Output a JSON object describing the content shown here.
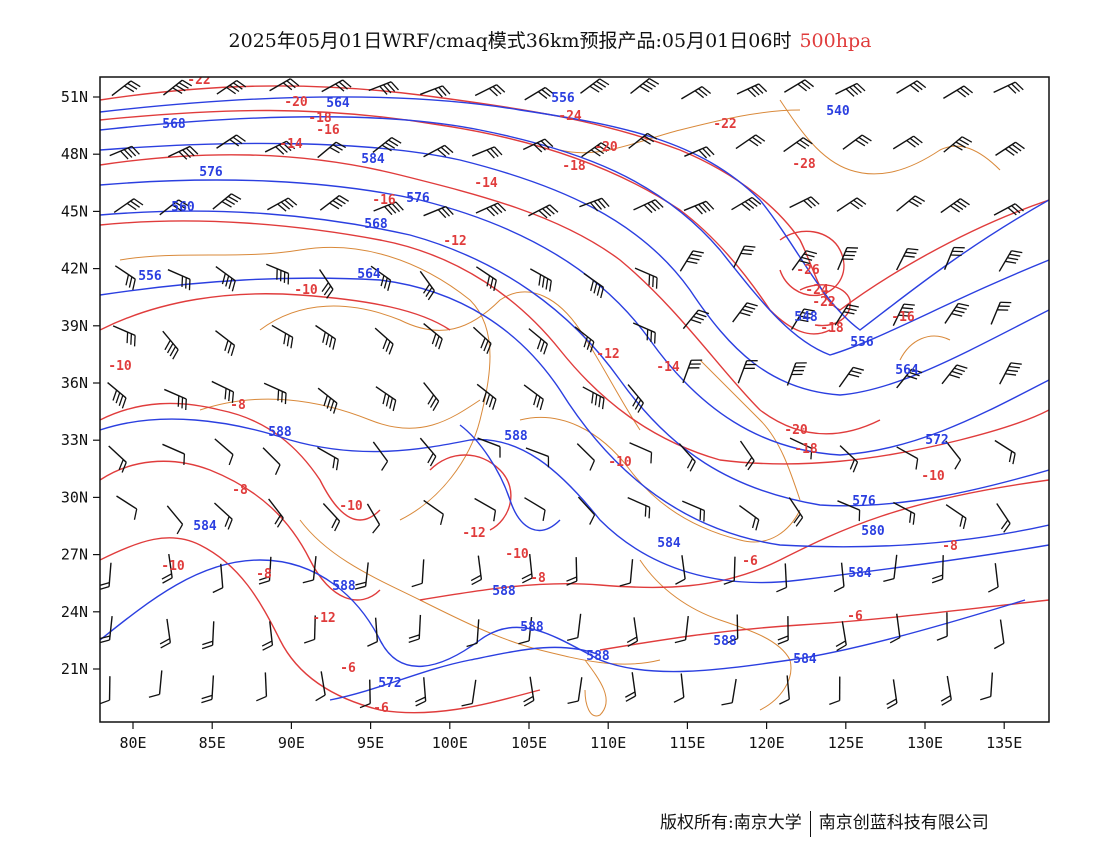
{
  "title": {
    "main": "2025年05月01日WRF/cmaq模式36km预报产品:05月01日06时",
    "level": "500hpa"
  },
  "colors": {
    "geopotential_contour": "#2b3fe0",
    "temperature_contour": "#e03c3c",
    "boundary": "#d9893a",
    "wind_barb": "#111111"
  },
  "axes": {
    "lon_labels": [
      "80E",
      "85E",
      "90E",
      "95E",
      "100E",
      "105E",
      "110E",
      "115E",
      "120E",
      "125E",
      "130E",
      "135E"
    ],
    "lat_labels": [
      "51N",
      "48N",
      "45N",
      "42N",
      "39N",
      "36N",
      "33N",
      "30N",
      "27N",
      "24N",
      "21N"
    ]
  },
  "contour_labels": {
    "blue": [
      "564",
      "588",
      "540",
      "556",
      "568",
      "576",
      "560",
      "548",
      "556",
      "564",
      "572",
      "576",
      "580",
      "584",
      "588",
      "584",
      "588",
      "588",
      "584",
      "588",
      "588",
      "572",
      "584",
      "556",
      "564",
      "568",
      "576",
      "584",
      "588"
    ],
    "red": [
      "-22",
      "-20",
      "-18",
      "-16",
      "-14",
      "-24",
      "-22",
      "-20",
      "-18",
      "-16",
      "-14",
      "-12",
      "-10",
      "-28",
      "-26",
      "-24",
      "-22",
      "-18",
      "-16",
      "-20",
      "-18",
      "-14",
      "-12",
      "-10",
      "-10",
      "-8",
      "-10",
      "-8",
      "-10",
      "-12",
      "-10",
      "-8",
      "-8",
      "-6",
      "-6",
      "-12",
      "-10",
      "-8",
      "-6",
      "-6"
    ]
  },
  "footer": {
    "left": "版权所有:南京大学",
    "right": "南京创蓝科技有限公司"
  }
}
